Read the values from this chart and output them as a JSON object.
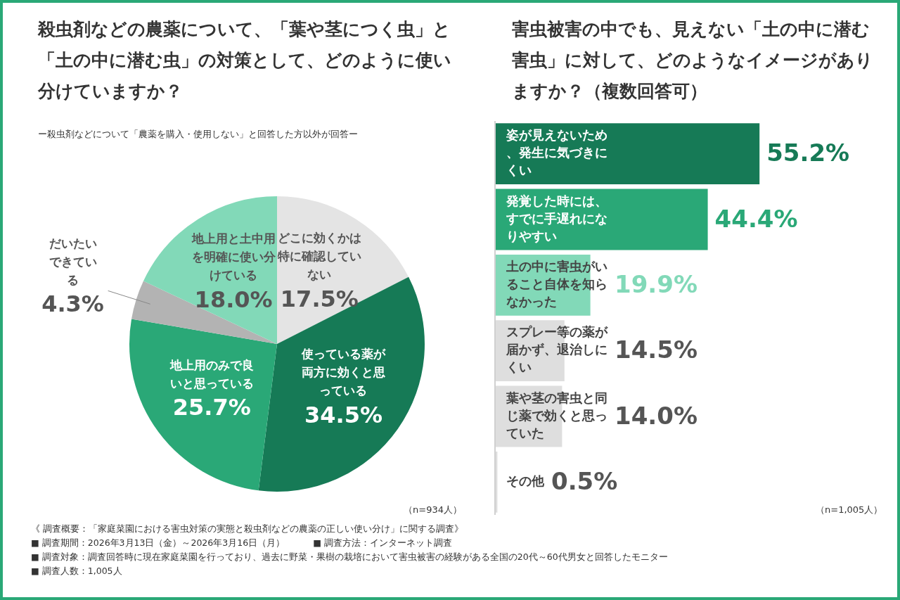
{
  "chart_data": [
    {
      "type": "pie",
      "title": "殺虫剤などの農薬について、「葉や茎につく虫」と「土の中に潜む虫」の対策として、どのように使い分けていますか？",
      "subtitle": "ー殺虫剤などについて「農薬を購入・使用しない」と回答した方以外が回答ー",
      "categories": [
        "どこに効くかは特に確認していない",
        "使っている薬が両方に効くと思っている",
        "地上用のみで良いと思っている",
        "だいたいできている",
        "地上用と土中用を明確に使い分けている"
      ],
      "values": [
        17.5,
        34.5,
        25.7,
        4.3,
        18.0
      ],
      "value_labels": [
        "17.5%",
        "34.5%",
        "25.7%",
        "4.3%",
        "18.0%"
      ],
      "colors": [
        "#e4e4e4",
        "#167a56",
        "#2aa877",
        "#b3b3b3",
        "#82d9b8"
      ],
      "legend": false,
      "annotations": [
        "（n=934人）"
      ]
    },
    {
      "type": "bar",
      "orientation": "horizontal",
      "title": "害虫被害の中でも、見えない「土の中に潜む害虫」に対して、どのようなイメージがありますか？（複数回答可）",
      "categories": [
        "姿が見えないため、発生に気づきにくい",
        "発覚した時には、すでに手遅れになりやすい",
        "土の中に害虫がいること自体を知らなかった",
        "スプレー等の薬が届かず、退治しにくい",
        "葉や茎の害虫と同じ薬で効くと思っていた",
        "その他"
      ],
      "values": [
        55.2,
        44.4,
        19.9,
        14.5,
        14.0,
        0.5
      ],
      "colors": [
        "#167a56",
        "#2aa877",
        "#82d9b8",
        "#dedede",
        "#dedede",
        "#dedede"
      ],
      "value_labels": [
        "55.2%",
        "44.4%",
        "19.9%",
        "14.5%",
        "14.0%",
        "0.5%"
      ],
      "legend": false,
      "annotations": [
        "（n=1,005人）",
        "《 調査概要：「家庭菜園における害虫対策の実態と殺虫剤などの農薬の正しい使い分け」に関する調査》",
        "■ 調査期間：2026年3月13日（金）～2026年3月16日（月）",
        "■ 調査方法：インターネット調査",
        "■ 調査対象：調査回答時に現在家庭菜園を行っており、過去に野菜・果樹の栽培において害虫被害の経験がある全国の20代～60代男女と回答したモニター",
        "■ 調査人数：1,005人"
      ]
    }
  ]
}
